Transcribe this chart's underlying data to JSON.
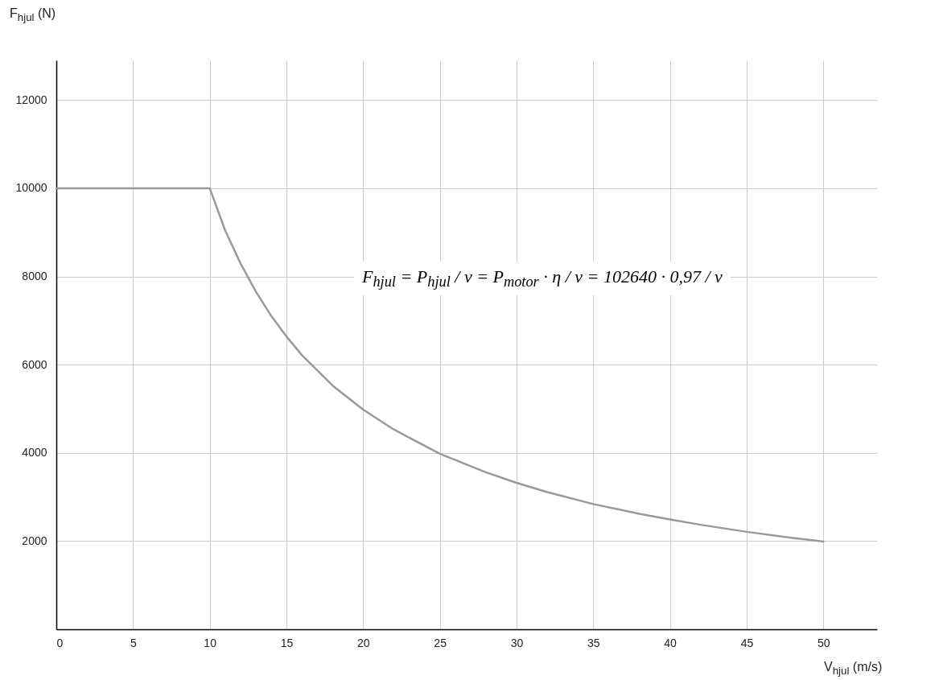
{
  "chart_data": {
    "type": "line",
    "xlabel": "V$_{hjul}$ (m/s)",
    "ylabel": "F$_{hjul}$ (N)",
    "annotations": [
      "F$_{hjul}$ = P$_{hjul}$ / v = P$_{motor}$ · η / v = 102640 · 0,97 / v"
    ],
    "x": [
      0,
      10,
      11,
      12,
      13,
      14,
      15,
      16,
      18,
      20,
      22,
      25,
      28,
      30,
      32,
      35,
      38,
      40,
      42,
      45,
      48,
      50
    ],
    "series": [
      {
        "color": "#999999",
        "values": [
          10000,
          10000,
          9050,
          8300,
          7660,
          7110,
          6640,
          6220,
          5530,
          4980,
          4530,
          3980,
          3560,
          3320,
          3110,
          2840,
          2620,
          2490,
          2370,
          2210,
          2070,
          1990
        ]
      }
    ],
    "xlim": [
      0,
      53.5
    ],
    "ylim": [
      0,
      12900
    ],
    "xticks": [
      0,
      5,
      10,
      15,
      20,
      25,
      30,
      35,
      40,
      45,
      50
    ],
    "yticks": [
      2000,
      4000,
      6000,
      8000,
      10000,
      12000
    ],
    "grid": true,
    "marker": "none",
    "line_style": "solid"
  }
}
